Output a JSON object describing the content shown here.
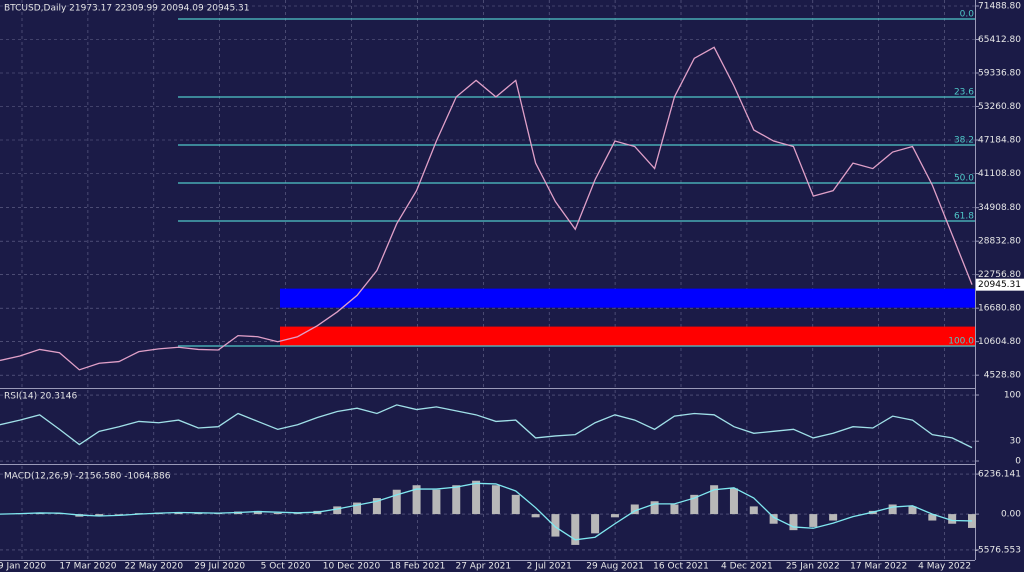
{
  "chart_data": [
    {
      "type": "line",
      "title": "BTCUSD,Daily  21973.17 22309.99 20094.09 20945.31",
      "x_labels": [
        "9 Jan 2020",
        "17 Mar 2020",
        "22 May 2020",
        "29 Jul 2020",
        "5 Oct 2020",
        "10 Dec 2020",
        "18 Feb 2021",
        "27 Apr 2021",
        "2 Jul 2021",
        "29 Aug 2021",
        "16 Oct 2021",
        "4 Dec 2021",
        "25 Jan 2022",
        "17 Mar 2022",
        "4 May 2022"
      ],
      "ylim": [
        2203,
        72577
      ],
      "yticks": [
        {
          "value": 71488.8,
          "label": "71488.80"
        },
        {
          "value": 65412.8,
          "label": "65412.80"
        },
        {
          "value": 59336.8,
          "label": "59336.80"
        },
        {
          "value": 53260.8,
          "label": "53260.80"
        },
        {
          "value": 47184.8,
          "label": "47184.80"
        },
        {
          "value": 41108.8,
          "label": "41108.80"
        },
        {
          "value": 34908.8,
          "label": "34908.80"
        },
        {
          "value": 28832.8,
          "label": "28832.80"
        },
        {
          "value": 22756.8,
          "label": "22756.80"
        },
        {
          "value": 16680.8,
          "label": "16680.80"
        },
        {
          "value": 10604.8,
          "label": "10604.80"
        },
        {
          "value": 4528.8,
          "label": "4528.80"
        }
      ],
      "current_price": 20945.31,
      "series": [
        {
          "name": "BTCUSD",
          "color": "#e0a0c8",
          "values": [
            7200,
            8000,
            9200,
            8600,
            5500,
            6700,
            7000,
            8800,
            9300,
            9600,
            9200,
            9100,
            11700,
            11500,
            10600,
            11500,
            13500,
            16000,
            19000,
            23500,
            32000,
            38000,
            47000,
            55000,
            58000,
            55000,
            58000,
            43000,
            36000,
            31000,
            40000,
            47000,
            46000,
            42000,
            55000,
            62000,
            64000,
            57000,
            49000,
            47000,
            46000,
            37000,
            38000,
            43000,
            42000,
            45000,
            46000,
            39000,
            30000,
            20945.31
          ]
        }
      ],
      "fibonacci": [
        {
          "label": "0.0",
          "price": 69130
        },
        {
          "label": "23.6",
          "price": 54980
        },
        {
          "label": "38.2",
          "price": 46275
        },
        {
          "label": "50.0",
          "price": 39380
        },
        {
          "label": "61.8",
          "price": 32490
        },
        {
          "label": "100.0",
          "price": 9820
        }
      ],
      "fib_color": "#4fc8c8",
      "zones": [
        {
          "top": 20230,
          "bottom": 16780,
          "color": "#0000ff"
        },
        {
          "top": 13340,
          "bottom": 9900,
          "color": "#ff0000"
        }
      ]
    },
    {
      "type": "line",
      "title": "RSI(14) 20.3146",
      "ylim": [
        -3,
        107.6
      ],
      "yticks": [
        100,
        30,
        0
      ],
      "series": [
        {
          "name": "RSI",
          "color": "#a0e0e8",
          "values": [
            55,
            62,
            70,
            48,
            25,
            45,
            52,
            60,
            58,
            62,
            50,
            52,
            72,
            60,
            48,
            55,
            66,
            75,
            80,
            72,
            85,
            78,
            82,
            76,
            70,
            60,
            62,
            35,
            38,
            40,
            58,
            70,
            62,
            48,
            68,
            72,
            70,
            52,
            42,
            45,
            48,
            35,
            42,
            52,
            50,
            68,
            62,
            40,
            35,
            20.3146
          ]
        }
      ]
    },
    {
      "type": "bar",
      "title": "MACD(12,26,9) -2156.580 -1064.886",
      "ylim": [
        -7151,
        7496
      ],
      "yticks": [
        {
          "value": 6236.141,
          "label": "6236.141"
        },
        {
          "value": 0,
          "label": "0.00"
        },
        {
          "value": -5576.553,
          "label": "-5576.553"
        }
      ],
      "series": [
        {
          "name": "MACD",
          "color": "#b8b8b8",
          "values": [
            50,
            150,
            250,
            100,
            -400,
            -300,
            -100,
            150,
            250,
            300,
            150,
            100,
            400,
            500,
            200,
            100,
            500,
            1200,
            1800,
            2500,
            3800,
            4500,
            3800,
            4500,
            5200,
            4500,
            3000,
            -500,
            -3500,
            -4800,
            -3000,
            -500,
            1500,
            2000,
            1500,
            3000,
            4500,
            4000,
            1200,
            -1500,
            -2500,
            -2000,
            -1000,
            0,
            500,
            1500,
            1200,
            -1000,
            -1500,
            -2156.58
          ]
        },
        {
          "name": "Signal",
          "color": "#80e8f0",
          "values": [
            0,
            80,
            180,
            150,
            -150,
            -300,
            -200,
            0,
            150,
            250,
            200,
            150,
            250,
            400,
            300,
            200,
            300,
            800,
            1400,
            2000,
            3000,
            3900,
            3900,
            4200,
            4800,
            4700,
            3600,
            1000,
            -2000,
            -4000,
            -3600,
            -1500,
            500,
            1600,
            1600,
            2500,
            3800,
            4100,
            2500,
            -500,
            -2000,
            -2200,
            -1400,
            -400,
            300,
            1100,
            1300,
            0,
            -1000,
            -1064.886
          ]
        }
      ]
    }
  ]
}
